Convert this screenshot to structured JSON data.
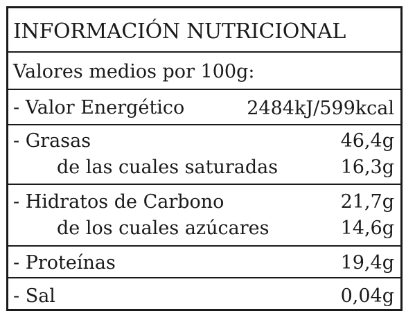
{
  "title": "INFORMACIÓN NUTRICIONAL",
  "subtitle": "Valores medios por 100g:",
  "energy": {
    "label": "- Valor Energético",
    "value": "2484kJ/599kcal"
  },
  "fat": {
    "label": "- Grasas",
    "value": "46,4g",
    "sub_label": "de las cuales saturadas",
    "sub_value": "16,3g"
  },
  "carbs": {
    "label": "- Hidratos de Carbono",
    "value": "21,7g",
    "sub_label": "de los cuales azúcares",
    "sub_value": "14,6g"
  },
  "protein": {
    "label": "- Proteínas",
    "value": "19,4g"
  },
  "salt": {
    "label": "- Sal",
    "value": "0,04g"
  }
}
